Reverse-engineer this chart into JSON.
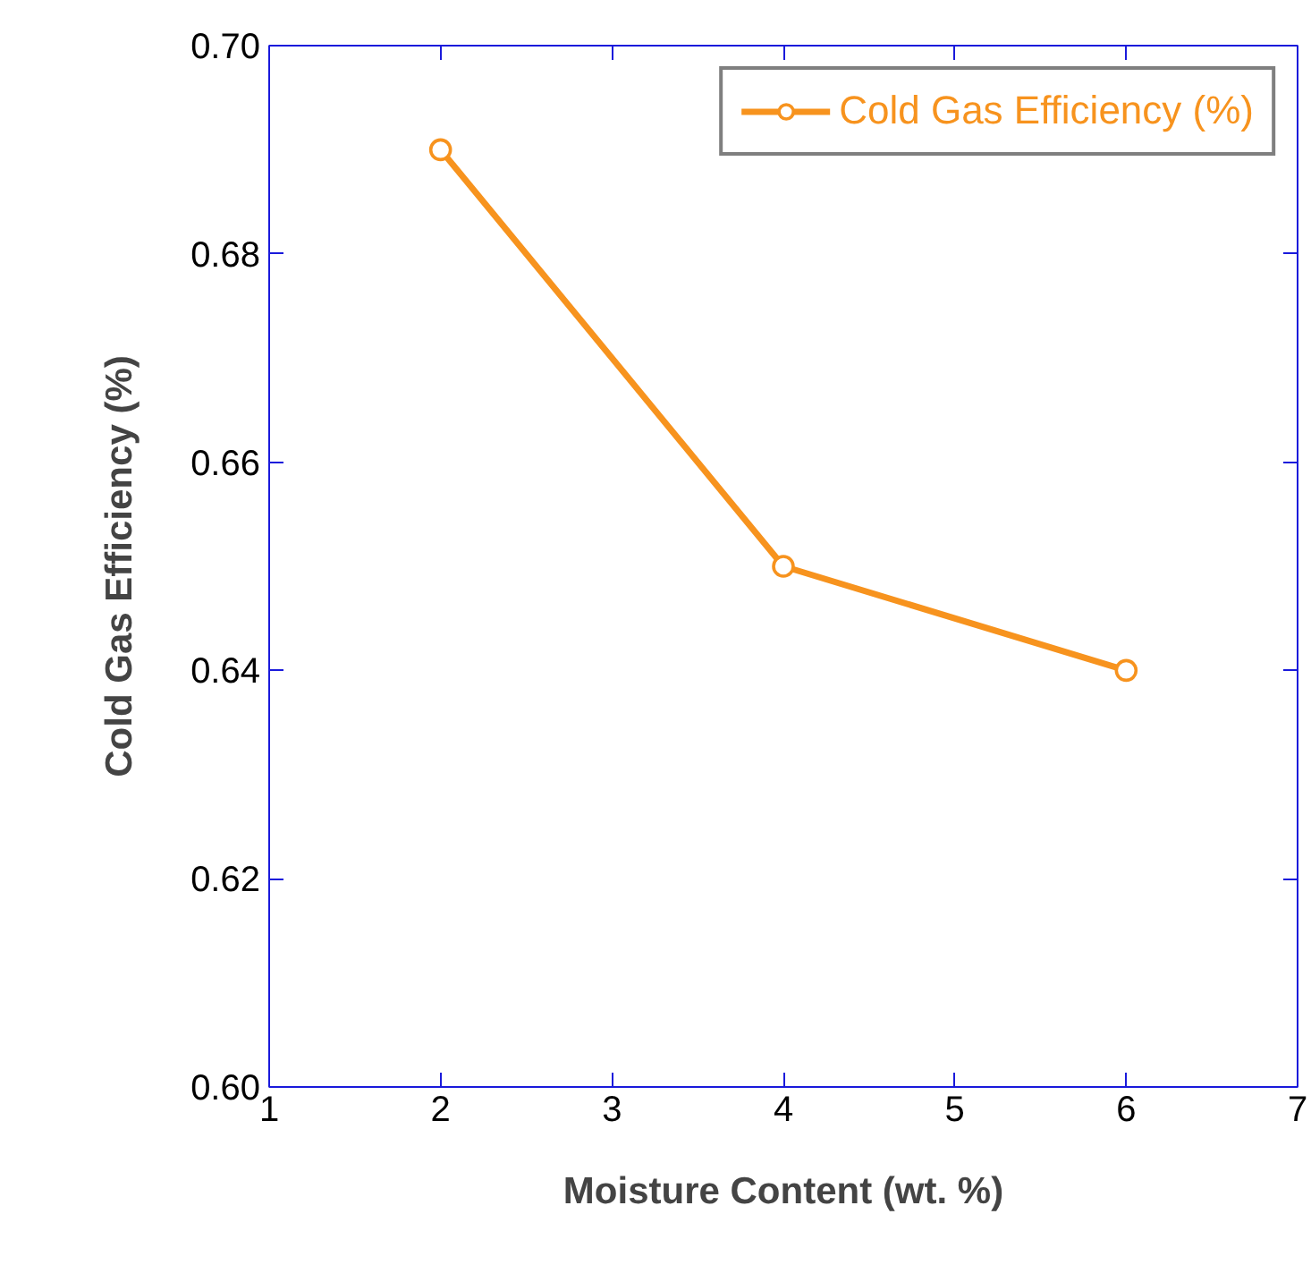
{
  "chart_data": {
    "type": "line",
    "xlabel": "Moisture Content (wt. %)",
    "ylabel": "Cold Gas Efficiency (%)",
    "x": [
      2,
      4,
      6
    ],
    "series": [
      {
        "name": "Cold Gas Efficiency (%)",
        "color": "#f7931e",
        "values": [
          0.69,
          0.65,
          0.64
        ]
      }
    ],
    "xlim": [
      1,
      7
    ],
    "xticks": [
      1,
      2,
      3,
      4,
      5,
      6,
      7
    ],
    "ylim": [
      0.6,
      0.7
    ],
    "yticks": [
      {
        "value": 0.6,
        "label": "0.60"
      },
      {
        "value": 0.62,
        "label": "0.62"
      },
      {
        "value": 0.64,
        "label": "0.64"
      },
      {
        "value": 0.66,
        "label": "0.66"
      },
      {
        "value": 0.68,
        "label": "0.68"
      },
      {
        "value": 0.7,
        "label": "0.70"
      }
    ],
    "marker": "circle",
    "line_style": "solid",
    "legend": "top right",
    "grid": false
  }
}
